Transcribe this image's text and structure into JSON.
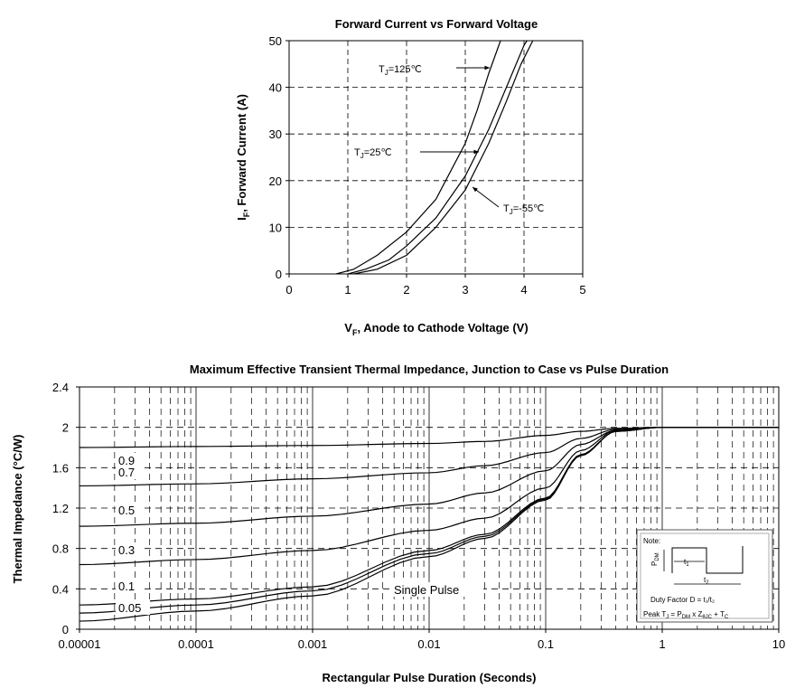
{
  "chart_data": [
    {
      "type": "line",
      "title": "Forward Current vs Forward Voltage",
      "xlabel": "VF, Anode to Cathode Voltage (V)",
      "xlabel_main": "V",
      "xlabel_sub": "F",
      "xlabel_rest": ", Anode to Cathode Voltage (V)",
      "ylabel_main": "I",
      "ylabel_sub": "F",
      "ylabel_rest": ", Forward Current (A)",
      "xlim": [
        0,
        5
      ],
      "ylim": [
        0,
        50
      ],
      "xticks": [
        "0",
        "1",
        "2",
        "3",
        "4",
        "5"
      ],
      "yticks": [
        "0",
        "10",
        "20",
        "30",
        "40",
        "50"
      ],
      "grid": true,
      "series": [
        {
          "name": "TJ=125℃",
          "points": [
            [
              0.8,
              0
            ],
            [
              1.1,
              1
            ],
            [
              1.5,
              4
            ],
            [
              2.0,
              9
            ],
            [
              2.5,
              16
            ],
            [
              3.0,
              28
            ],
            [
              3.2,
              35
            ],
            [
              3.4,
              43
            ],
            [
              3.6,
              51
            ]
          ]
        },
        {
          "name": "TJ=25℃",
          "points": [
            [
              1.0,
              0
            ],
            [
              1.3,
              1
            ],
            [
              1.7,
              3
            ],
            [
              2.0,
              6
            ],
            [
              2.5,
              12
            ],
            [
              3.0,
              21
            ],
            [
              3.4,
              31
            ],
            [
              3.8,
              43
            ],
            [
              4.0,
              49
            ],
            [
              4.05,
              51
            ]
          ]
        },
        {
          "name": "TJ=-55℃",
          "points": [
            [
              1.1,
              0
            ],
            [
              1.5,
              1
            ],
            [
              2.0,
              4
            ],
            [
              2.5,
              10
            ],
            [
              3.0,
              18
            ],
            [
              3.4,
              28
            ],
            [
              3.7,
              37
            ],
            [
              3.95,
              45
            ],
            [
              4.15,
              51
            ]
          ]
        }
      ],
      "annotations": [
        {
          "main": "T",
          "sub": "J",
          "rest": "=125℃"
        },
        {
          "main": "T",
          "sub": "J",
          "rest": "=25℃"
        },
        {
          "main": "T",
          "sub": "J",
          "rest": "=-55℃"
        }
      ]
    },
    {
      "type": "line",
      "title": "Maximum Effective Transient Thermal Impedance, Junction to Case vs Pulse Duration",
      "xlabel": "Rectangular Pulse Duration  (Seconds)",
      "ylabel": "Thermal Impedance (°C/W)",
      "xscale": "log",
      "xlim": [
        1e-05,
        10
      ],
      "ylim": [
        0,
        2.4
      ],
      "xticks": [
        "0.00001",
        "0.0001",
        "0.001",
        "0.01",
        "0.1",
        "1",
        "10"
      ],
      "yticks": [
        "0",
        "0.4",
        "0.8",
        "1.2",
        "1.6",
        "2",
        "2.4"
      ],
      "grid": true,
      "series": [
        {
          "name": "0.9",
          "points": [
            [
              1e-05,
              1.8
            ],
            [
              0.0001,
              1.81
            ],
            [
              0.001,
              1.82
            ],
            [
              0.01,
              1.84
            ],
            [
              0.03,
              1.86
            ],
            [
              0.1,
              1.92
            ],
            [
              0.2,
              1.96
            ],
            [
              0.4,
              1.99
            ],
            [
              1,
              2.0
            ],
            [
              10,
              2.0
            ]
          ]
        },
        {
          "name": "0.7",
          "points": [
            [
              1e-05,
              1.42
            ],
            [
              0.0001,
              1.44
            ],
            [
              0.001,
              1.49
            ],
            [
              0.01,
              1.55
            ],
            [
              0.03,
              1.62
            ],
            [
              0.1,
              1.75
            ],
            [
              0.2,
              1.89
            ],
            [
              0.4,
              1.98
            ],
            [
              1,
              2.0
            ],
            [
              10,
              2.0
            ]
          ]
        },
        {
          "name": "0.5",
          "points": [
            [
              1e-05,
              1.02
            ],
            [
              0.0001,
              1.05
            ],
            [
              0.001,
              1.12
            ],
            [
              0.01,
              1.24
            ],
            [
              0.03,
              1.35
            ],
            [
              0.1,
              1.57
            ],
            [
              0.2,
              1.83
            ],
            [
              0.4,
              1.97
            ],
            [
              1,
              2.0
            ],
            [
              10,
              2.0
            ]
          ]
        },
        {
          "name": "0.3",
          "points": [
            [
              1e-05,
              0.64
            ],
            [
              0.0001,
              0.69
            ],
            [
              0.001,
              0.78
            ],
            [
              0.01,
              0.98
            ],
            [
              0.03,
              1.1
            ],
            [
              0.1,
              1.4
            ],
            [
              0.2,
              1.77
            ],
            [
              0.4,
              1.97
            ],
            [
              1,
              2.0
            ],
            [
              10,
              2.0
            ]
          ]
        },
        {
          "name": "0.1",
          "points": [
            [
              1e-05,
              0.24
            ],
            [
              0.0001,
              0.3
            ],
            [
              0.001,
              0.42
            ],
            [
              0.01,
              0.78
            ],
            [
              0.03,
              0.94
            ],
            [
              0.1,
              1.3
            ],
            [
              0.2,
              1.73
            ],
            [
              0.4,
              1.96
            ],
            [
              1,
              2.0
            ],
            [
              10,
              2.0
            ]
          ]
        },
        {
          "name": "0.05",
          "points": [
            [
              1e-05,
              0.16
            ],
            [
              0.0001,
              0.24
            ],
            [
              0.001,
              0.38
            ],
            [
              0.01,
              0.75
            ],
            [
              0.03,
              0.92
            ],
            [
              0.1,
              1.29
            ],
            [
              0.2,
              1.72
            ],
            [
              0.4,
              1.96
            ],
            [
              1,
              2.0
            ],
            [
              10,
              2.0
            ]
          ]
        },
        {
          "name": "Single Pulse",
          "points": [
            [
              1e-05,
              0.08
            ],
            [
              0.0001,
              0.18
            ],
            [
              0.001,
              0.33
            ],
            [
              0.01,
              0.72
            ],
            [
              0.03,
              0.9
            ],
            [
              0.1,
              1.28
            ],
            [
              0.2,
              1.72
            ],
            [
              0.4,
              1.96
            ],
            [
              1,
              2.0
            ],
            [
              10,
              2.0
            ]
          ]
        }
      ],
      "curve_labels": [
        "0.9",
        "0.7",
        "0.5",
        "0.3",
        "0.1",
        "0.05",
        "Single Pulse"
      ],
      "note": {
        "title": "Note:",
        "pdm_main": "P",
        "pdm_sub": "DM",
        "t1_main": "t",
        "t1_sub": "1",
        "t2_main": "t",
        "t2_sub": "2",
        "duty_label": "Duty Factor  D = ",
        "duty_formula": "t₁/t₂",
        "peak_label": "Peak T",
        "peak_sub": "J",
        "peak_rest": " = P",
        "peak_sub2": "DM",
        "peak_rest2": " x Z",
        "peak_sub3": "θJC",
        "peak_rest3": " + T",
        "peak_sub4": "C"
      }
    }
  ]
}
